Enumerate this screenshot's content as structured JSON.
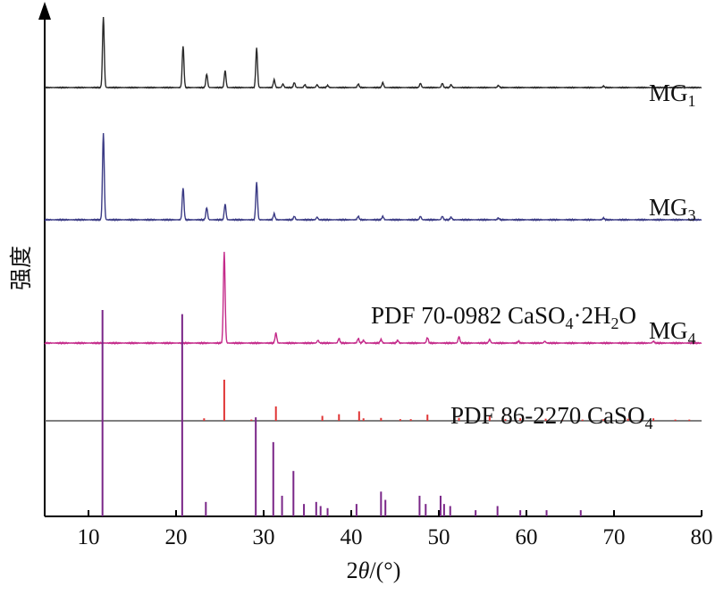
{
  "chart_data": {
    "type": "line",
    "xlabel_prefix": "2",
    "xlabel_var": "θ",
    "xlabel_unit": "/(°)",
    "ylabel": "强度",
    "xlim": [
      5,
      80
    ],
    "xticks": [
      10,
      20,
      30,
      40,
      50,
      60,
      70,
      80
    ],
    "grid": false,
    "legend": "none",
    "series": [
      {
        "name_main": "MG",
        "name_sub": "1",
        "type": "xrd",
        "color": "#2b2b2b",
        "peaks": [
          [
            11.7,
            1.0
          ],
          [
            20.8,
            0.59
          ],
          [
            23.5,
            0.19
          ],
          [
            25.6,
            0.24
          ],
          [
            29.2,
            0.56
          ],
          [
            31.2,
            0.11
          ],
          [
            32.2,
            0.05
          ],
          [
            33.5,
            0.07
          ],
          [
            34.7,
            0.04
          ],
          [
            36.1,
            0.04
          ],
          [
            37.3,
            0.03
          ],
          [
            40.8,
            0.05
          ],
          [
            43.6,
            0.07
          ],
          [
            47.9,
            0.06
          ],
          [
            50.4,
            0.06
          ],
          [
            51.4,
            0.04
          ],
          [
            56.8,
            0.03
          ],
          [
            68.8,
            0.02
          ]
        ]
      },
      {
        "name_main": "MG",
        "name_sub": "3",
        "type": "xrd",
        "color": "#3b3b85",
        "peaks": [
          [
            11.7,
            1.0
          ],
          [
            20.8,
            0.37
          ],
          [
            23.5,
            0.14
          ],
          [
            25.6,
            0.18
          ],
          [
            29.2,
            0.43
          ],
          [
            31.2,
            0.07
          ],
          [
            33.5,
            0.04
          ],
          [
            36.1,
            0.03
          ],
          [
            40.8,
            0.04
          ],
          [
            43.6,
            0.04
          ],
          [
            47.9,
            0.04
          ],
          [
            50.4,
            0.04
          ],
          [
            51.4,
            0.03
          ],
          [
            56.8,
            0.02
          ],
          [
            68.8,
            0.02
          ]
        ]
      },
      {
        "name_main": "MG",
        "name_sub": "4",
        "type": "xrd",
        "color": "#c42a8a",
        "peaks": [
          [
            25.5,
            1.0
          ],
          [
            31.4,
            0.11
          ],
          [
            36.2,
            0.03
          ],
          [
            38.6,
            0.05
          ],
          [
            40.8,
            0.05
          ],
          [
            41.4,
            0.03
          ],
          [
            43.4,
            0.04
          ],
          [
            45.3,
            0.03
          ],
          [
            48.7,
            0.06
          ],
          [
            52.3,
            0.07
          ],
          [
            55.8,
            0.04
          ],
          [
            59.1,
            0.02
          ],
          [
            62.1,
            0.02
          ],
          [
            74.5,
            0.02
          ]
        ]
      },
      {
        "name_main": "PDF 86-2270 CaSO",
        "name_sub": "4",
        "type": "stick",
        "color": "#e03535",
        "peaks": [
          [
            23.2,
            0.06
          ],
          [
            25.5,
            1.0
          ],
          [
            28.6,
            0.03
          ],
          [
            31.4,
            0.35
          ],
          [
            36.7,
            0.12
          ],
          [
            38.6,
            0.16
          ],
          [
            40.9,
            0.23
          ],
          [
            41.4,
            0.06
          ],
          [
            43.4,
            0.07
          ],
          [
            45.6,
            0.04
          ],
          [
            46.8,
            0.04
          ],
          [
            48.7,
            0.15
          ],
          [
            52.3,
            0.07
          ],
          [
            55.8,
            0.13
          ],
          [
            57.6,
            0.04
          ],
          [
            59.3,
            0.06
          ],
          [
            62.2,
            0.05
          ],
          [
            64.1,
            0.03
          ],
          [
            66.4,
            0.03
          ],
          [
            68.8,
            0.04
          ],
          [
            71.6,
            0.05
          ],
          [
            73.1,
            0.04
          ],
          [
            74.5,
            0.06
          ],
          [
            77.0,
            0.03
          ],
          [
            78.6,
            0.03
          ]
        ]
      },
      {
        "name_main": "PDF 70-0982 CaSO",
        "name_sub": "4",
        "name_tail": "·2H",
        "name_sub2": "2",
        "name_tail2": "O",
        "type": "stick",
        "color": "#7a2688",
        "peaks": [
          [
            11.6,
            1.0
          ],
          [
            20.7,
            0.98
          ],
          [
            23.4,
            0.07
          ],
          [
            29.1,
            0.48
          ],
          [
            31.1,
            0.36
          ],
          [
            32.1,
            0.1
          ],
          [
            33.4,
            0.22
          ],
          [
            34.6,
            0.06
          ],
          [
            36.0,
            0.07
          ],
          [
            36.5,
            0.05
          ],
          [
            37.3,
            0.04
          ],
          [
            40.6,
            0.06
          ],
          [
            43.4,
            0.12
          ],
          [
            43.9,
            0.08
          ],
          [
            47.8,
            0.1
          ],
          [
            48.5,
            0.06
          ],
          [
            50.2,
            0.1
          ],
          [
            50.6,
            0.06
          ],
          [
            51.3,
            0.05
          ],
          [
            54.2,
            0.03
          ],
          [
            56.7,
            0.05
          ],
          [
            59.3,
            0.03
          ],
          [
            62.3,
            0.03
          ],
          [
            66.2,
            0.03
          ]
        ]
      }
    ]
  }
}
